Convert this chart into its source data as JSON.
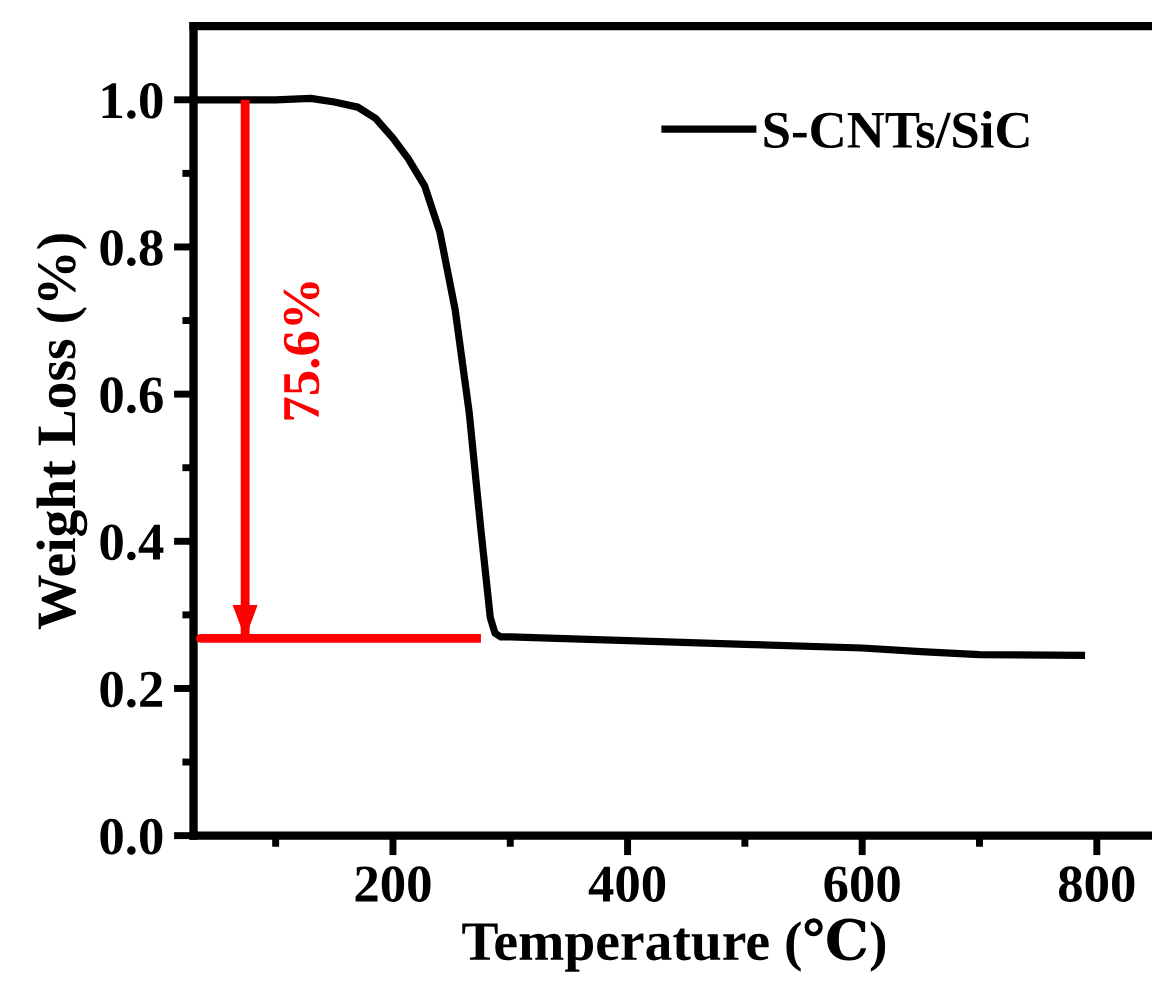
{
  "chart_data": {
    "type": "line",
    "xlabel": "Temperature (℃)",
    "ylabel": "Weight Loss (%)",
    "xlim": [
      30,
      850
    ],
    "xticks": [
      200,
      400,
      600,
      800
    ],
    "ylim": [
      0,
      1.1
    ],
    "yticks": [
      {
        "value": 0,
        "label": "0.0"
      },
      0.2,
      0.4,
      0.6,
      0.8,
      {
        "value": 1,
        "label": "1.0"
      }
    ],
    "grid": false,
    "legend": "top right",
    "series": [
      {
        "name": "S-CNTs/SiC",
        "color": "#000000",
        "x": [
          32,
          100,
          130,
          150,
          170,
          185,
          200,
          213,
          227,
          240,
          253,
          265,
          275,
          283,
          287,
          292,
          300,
          400,
          500,
          600,
          650,
          700,
          790
        ],
        "values": [
          1.0,
          1.0,
          1.002,
          0.997,
          0.99,
          0.975,
          0.948,
          0.92,
          0.883,
          0.82,
          0.715,
          0.575,
          0.415,
          0.296,
          0.275,
          0.27,
          0.27,
          0.265,
          0.26,
          0.255,
          0.25,
          0.246,
          0.245
        ]
      },
      {
        "color": "#ff0000",
        "x": [
          74,
          74,
          36,
          275
        ],
        "values": [
          1.0,
          0.268,
          0.268,
          0.268
        ]
      }
    ],
    "annotations": [
      "75.6%"
    ]
  }
}
